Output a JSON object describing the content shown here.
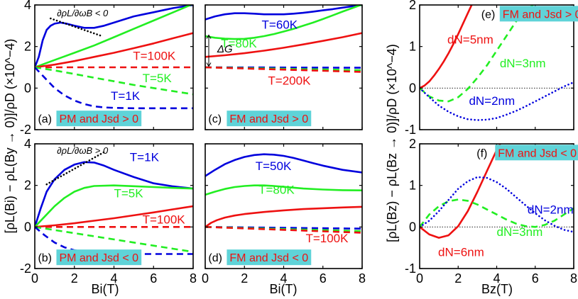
{
  "colors": {
    "blue": "#0000dd",
    "green": "#22ee22",
    "red": "#ee1111",
    "cyan_label_bg": "#5fd3d8",
    "black": "#000000"
  },
  "figure": {
    "left_ylabel": "[ρL(Bi) − ρL(By → 0)]/ρD (×10^−4)",
    "right_ylabel": "[ρL(Bz) − ρL(Bz → 0)]/ρD (×10^−4)",
    "left_xlabel": "Bi(T)",
    "mid_xlabel": "Bi(T)",
    "right_xlabel": "Bz(T)"
  },
  "chart_data": [
    {
      "id": "a",
      "type": "line",
      "panel_label": "(a)",
      "condition": "PM and Jsd > 0",
      "xlim": [
        0,
        8
      ],
      "ylim": [
        -2,
        4
      ],
      "xticks": [
        0,
        2,
        4,
        6,
        8
      ],
      "yticks": [
        "-2",
        "0",
        "2",
        "4"
      ],
      "annotations": [
        "∂ρL/∂ωB < 0"
      ],
      "series": [
        {
          "name": "T=1K",
          "color": "blue",
          "style": "solid",
          "x": [
            0,
            0.2,
            0.4,
            0.6,
            0.8,
            1.0,
            1.3,
            1.6,
            2.0,
            2.5,
            3.0,
            3.5,
            4.0,
            4.5,
            5.0,
            5.5,
            6.0,
            6.5,
            7.0,
            7.5,
            8.0
          ],
          "y": [
            1.0,
            1.5,
            2.3,
            2.8,
            3.0,
            3.1,
            3.15,
            3.1,
            3.0,
            2.9,
            2.9,
            3.0,
            3.15,
            3.3,
            3.45,
            3.55,
            3.65,
            3.75,
            3.85,
            3.93,
            4.0
          ]
        },
        {
          "name": "T=5K",
          "color": "green",
          "style": "solid",
          "x": [
            0,
            1,
            2,
            3,
            4,
            5,
            6,
            7,
            8
          ],
          "y": [
            1.0,
            1.35,
            1.7,
            2.05,
            2.45,
            2.85,
            3.25,
            3.65,
            4.05
          ]
        },
        {
          "name": "T=100K",
          "color": "red",
          "style": "solid",
          "x": [
            0,
            1,
            2,
            3,
            4,
            5,
            6,
            7,
            8
          ],
          "y": [
            1.0,
            1.13,
            1.3,
            1.5,
            1.7,
            1.92,
            2.15,
            2.4,
            2.65
          ]
        },
        {
          "name": "T=100K",
          "color": "red",
          "style": "dashed",
          "x": [
            0,
            8
          ],
          "y": [
            1.0,
            1.0
          ]
        },
        {
          "name": "T=5K",
          "color": "green",
          "style": "dashed",
          "x": [
            0,
            1,
            2,
            3,
            4,
            5,
            6,
            7,
            8
          ],
          "y": [
            1.0,
            0.85,
            0.68,
            0.5,
            0.33,
            0.15,
            0.0,
            -0.15,
            -0.3
          ]
        },
        {
          "name": "T=1K",
          "color": "blue",
          "style": "dashed",
          "x": [
            0,
            0.5,
            1,
            1.5,
            2,
            2.5,
            3,
            3.5,
            4,
            5,
            6,
            7,
            8
          ],
          "y": [
            1.0,
            0.5,
            0.0,
            -0.35,
            -0.6,
            -0.77,
            -0.88,
            -0.93,
            -0.95,
            -0.97,
            -0.97,
            -0.97,
            -0.97
          ]
        }
      ],
      "tangents": [
        {
          "x": [
            0.8,
            3.4
          ],
          "y": [
            3.35,
            2.5
          ]
        }
      ],
      "labels": [
        {
          "text": "T=100K",
          "color": "red"
        },
        {
          "text": "T=5K",
          "color": "green"
        },
        {
          "text": "T=1K",
          "color": "blue"
        }
      ]
    },
    {
      "id": "b",
      "type": "line",
      "panel_label": "(b)",
      "condition": "PM and Jsd < 0",
      "xlim": [
        0,
        8
      ],
      "ylim": [
        -2,
        4
      ],
      "xticks": [
        0,
        2,
        4,
        6,
        8
      ],
      "yticks": [
        "-2",
        "0",
        "2",
        "4"
      ],
      "annotations": [
        "∂ρL/∂ωB > 0"
      ],
      "series": [
        {
          "name": "T=1K",
          "color": "blue",
          "style": "solid",
          "x": [
            0,
            0.3,
            0.6,
            1.0,
            1.5,
            2.0,
            2.5,
            3.0,
            3.5,
            4.0,
            5.0,
            6.0,
            7.0,
            8.0
          ],
          "y": [
            0,
            0.9,
            1.7,
            2.3,
            2.75,
            3.0,
            3.12,
            3.1,
            2.95,
            2.75,
            2.4,
            2.1,
            1.95,
            1.85
          ]
        },
        {
          "name": "T=5K",
          "color": "green",
          "style": "solid",
          "x": [
            0,
            0.5,
            1.0,
            1.5,
            2.0,
            2.5,
            3.0,
            4.0,
            5.0,
            6.0,
            7.0,
            8.0
          ],
          "y": [
            0,
            0.5,
            1.0,
            1.4,
            1.7,
            1.88,
            1.97,
            2.0,
            1.96,
            1.92,
            1.88,
            1.85
          ]
        },
        {
          "name": "T=100K",
          "color": "red",
          "style": "solid",
          "x": [
            0,
            1,
            2,
            3,
            4,
            5,
            6,
            7,
            8
          ],
          "y": [
            0,
            0.08,
            0.18,
            0.3,
            0.42,
            0.56,
            0.7,
            0.85,
            1.0
          ]
        },
        {
          "name": "T=100K",
          "color": "red",
          "style": "dashed",
          "x": [
            0,
            8
          ],
          "y": [
            0,
            0
          ]
        },
        {
          "name": "T=5K",
          "color": "green",
          "style": "dashed",
          "x": [
            0,
            1,
            2,
            3,
            4,
            5,
            6,
            7,
            8
          ],
          "y": [
            0,
            -0.15,
            -0.3,
            -0.45,
            -0.6,
            -0.75,
            -0.9,
            -1.05,
            -1.2
          ]
        },
        {
          "name": "T=1K",
          "color": "blue",
          "style": "dashed",
          "x": [
            0,
            0.5,
            1,
            1.5,
            2,
            3,
            4,
            5,
            6,
            7,
            8
          ],
          "y": [
            0,
            -0.4,
            -0.75,
            -0.98,
            -1.12,
            -1.25,
            -1.28,
            -1.3,
            -1.3,
            -1.3,
            -1.3
          ]
        }
      ],
      "tangents": [
        {
          "x": [
            0.6,
            3.5
          ],
          "y": [
            2.05,
            3.6
          ]
        }
      ],
      "labels": [
        {
          "text": "T=1K",
          "color": "blue"
        },
        {
          "text": "T=5K",
          "color": "green"
        },
        {
          "text": "T=100K",
          "color": "red"
        }
      ]
    },
    {
      "id": "c",
      "type": "line",
      "panel_label": "(c)",
      "condition": "FM and Jsd > 0",
      "xlim": [
        0,
        8
      ],
      "ylim": [
        -2,
        4
      ],
      "xticks": [
        0,
        2,
        4,
        6,
        8
      ],
      "yticks": [],
      "annotations": [
        "ΔG"
      ],
      "series": [
        {
          "name": "T=60K",
          "color": "blue",
          "style": "solid",
          "x": [
            0,
            0.5,
            1,
            1.5,
            2,
            2.5,
            3,
            3.5,
            4,
            4.5,
            5,
            5.5,
            6,
            6.5,
            7,
            7.5,
            8
          ],
          "y": [
            3.3,
            3.45,
            3.55,
            3.6,
            3.6,
            3.58,
            3.55,
            3.55,
            3.55,
            3.58,
            3.62,
            3.68,
            3.74,
            3.8,
            3.87,
            3.94,
            4.0
          ]
        },
        {
          "name": "T=80K",
          "color": "green",
          "style": "solid",
          "x": [
            0,
            0.5,
            1,
            1.5,
            2,
            2.5,
            3,
            3.5,
            4,
            4.5,
            5,
            5.5,
            6,
            6.5,
            7,
            7.5,
            8
          ],
          "y": [
            2.5,
            2.42,
            2.38,
            2.36,
            2.37,
            2.42,
            2.5,
            2.6,
            2.72,
            2.85,
            3.0,
            3.15,
            3.32,
            3.5,
            3.68,
            3.85,
            4.02
          ]
        },
        {
          "name": "T=200K",
          "color": "red",
          "style": "solid",
          "x": [
            0,
            1,
            2,
            3,
            4,
            5,
            6,
            7,
            8
          ],
          "y": [
            1.5,
            1.58,
            1.68,
            1.8,
            1.94,
            2.1,
            2.27,
            2.45,
            2.65
          ]
        },
        {
          "name": "T=60K",
          "color": "blue",
          "style": "dashed",
          "x": [
            0,
            8
          ],
          "y": [
            1.0,
            0.98
          ]
        },
        {
          "name": "T=80K",
          "color": "green",
          "style": "dashed",
          "x": [
            0,
            8
          ],
          "y": [
            1.0,
            0.86
          ]
        },
        {
          "name": "T=200K",
          "color": "red",
          "style": "dashed",
          "x": [
            0,
            8
          ],
          "y": [
            1.0,
            0.78
          ]
        }
      ],
      "labels": [
        {
          "text": "T=60K",
          "color": "blue"
        },
        {
          "text": "T=80K",
          "color": "green"
        },
        {
          "text": "T=200K",
          "color": "red"
        }
      ]
    },
    {
      "id": "d",
      "type": "line",
      "panel_label": "(d)",
      "condition": "FM and Jsd < 0",
      "xlim": [
        0,
        8
      ],
      "ylim": [
        -2,
        4
      ],
      "xticks": [
        0,
        2,
        4,
        6,
        8
      ],
      "yticks": [],
      "annotations": [],
      "series": [
        {
          "name": "T=50K",
          "color": "blue",
          "style": "solid",
          "x": [
            0,
            0.5,
            1,
            1.5,
            2,
            2.5,
            3,
            3.5,
            4,
            4.5,
            5,
            5.5,
            6,
            7,
            8
          ],
          "y": [
            2.45,
            2.75,
            3.02,
            3.22,
            3.37,
            3.46,
            3.5,
            3.48,
            3.42,
            3.32,
            3.2,
            3.07,
            2.95,
            2.75,
            2.62
          ]
        },
        {
          "name": "T=80K",
          "color": "green",
          "style": "solid",
          "x": [
            0,
            0.5,
            1,
            1.5,
            2,
            2.5,
            3,
            3.5,
            4,
            5,
            6,
            7,
            8
          ],
          "y": [
            1.55,
            1.7,
            1.83,
            1.92,
            1.97,
            2.0,
            2.0,
            1.97,
            1.93,
            1.85,
            1.8,
            1.77,
            1.76
          ]
        },
        {
          "name": "T=100K",
          "color": "red",
          "style": "solid",
          "x": [
            0,
            0.3,
            0.6,
            1,
            1.5,
            2,
            3,
            4,
            5,
            6,
            7,
            8
          ],
          "y": [
            0,
            0.2,
            0.33,
            0.45,
            0.55,
            0.62,
            0.72,
            0.8,
            0.86,
            0.9,
            0.94,
            0.97
          ]
        },
        {
          "name": "T=50K",
          "color": "blue",
          "style": "dashed",
          "x": [
            0,
            8
          ],
          "y": [
            0,
            -0.08
          ]
        },
        {
          "name": "T=80K",
          "color": "green",
          "style": "dashed",
          "x": [
            0,
            8
          ],
          "y": [
            0,
            -0.2
          ]
        },
        {
          "name": "T=100K",
          "color": "red",
          "style": "dashed",
          "x": [
            0,
            8
          ],
          "y": [
            0,
            -0.28
          ]
        }
      ],
      "labels": [
        {
          "text": "T=50K",
          "color": "blue"
        },
        {
          "text": "T=80K",
          "color": "green"
        },
        {
          "text": "T=100K",
          "color": "red"
        }
      ]
    },
    {
      "id": "e",
      "type": "line",
      "panel_label": "(e)",
      "condition": "FM and Jsd > 0",
      "xlim": [
        0,
        8
      ],
      "ylim": [
        -1,
        2
      ],
      "xticks": [
        0,
        2,
        4,
        6,
        8
      ],
      "yticks": [
        "-1",
        "0",
        "1",
        "2"
      ],
      "annotations": [],
      "series": [
        {
          "name": "dN=5nm",
          "color": "red",
          "style": "solid",
          "x": [
            0,
            0.25,
            0.5,
            0.75,
            1.0,
            1.25,
            1.5,
            1.75,
            2.0,
            2.25,
            2.5,
            2.75
          ],
          "y": [
            0,
            0.06,
            0.16,
            0.3,
            0.46,
            0.64,
            0.84,
            1.06,
            1.3,
            1.55,
            1.8,
            2.05
          ]
        },
        {
          "name": "dN=3nm",
          "color": "green",
          "style": "dashed",
          "x": [
            0,
            0.5,
            1.0,
            1.5,
            2.0,
            2.5,
            3.0,
            3.5,
            4.0,
            4.5,
            5.0,
            5.5,
            6.0
          ],
          "y": [
            0,
            -0.2,
            -0.3,
            -0.32,
            -0.22,
            -0.02,
            0.25,
            0.55,
            0.9,
            1.25,
            1.6,
            1.85,
            2.05
          ]
        },
        {
          "name": "dN=2nm",
          "color": "blue",
          "style": "dotted",
          "x": [
            0,
            0.5,
            1.0,
            1.5,
            2.0,
            2.5,
            3.0,
            3.5,
            4.0,
            4.5,
            5.0,
            5.5,
            6.0,
            6.5,
            7.0,
            7.5,
            8.0
          ],
          "y": [
            0,
            -0.22,
            -0.42,
            -0.57,
            -0.68,
            -0.75,
            -0.77,
            -0.76,
            -0.72,
            -0.64,
            -0.55,
            -0.44,
            -0.32,
            -0.2,
            -0.08,
            0.04,
            0.14
          ]
        }
      ],
      "labels": [
        {
          "text": "dN=5nm",
          "color": "red"
        },
        {
          "text": "dN=3nm",
          "color": "green"
        },
        {
          "text": "dN=2nm",
          "color": "blue"
        }
      ]
    },
    {
      "id": "f",
      "type": "line",
      "panel_label": "(f)",
      "condition": "FM and Jsd < 0",
      "xlim": [
        0,
        8
      ],
      "ylim": [
        -1,
        2
      ],
      "xticks": [
        0,
        2,
        4,
        6,
        8
      ],
      "yticks": [
        "-1",
        "0",
        "1",
        "2"
      ],
      "annotations": [],
      "series": [
        {
          "name": "dN=6nm",
          "color": "red",
          "style": "solid",
          "x": [
            0,
            0.5,
            1.0,
            1.5,
            2.0,
            2.5,
            3.0,
            3.5,
            4.0,
            4.3
          ],
          "y": [
            0,
            -0.18,
            -0.26,
            -0.2,
            0.02,
            0.38,
            0.85,
            1.35,
            1.85,
            2.1
          ]
        },
        {
          "name": "dN=3nm",
          "color": "green",
          "style": "dashed",
          "x": [
            0,
            0.5,
            1.0,
            1.5,
            2.0,
            2.5,
            3.0,
            3.5,
            4.0,
            4.5,
            5.0,
            5.5,
            6.0,
            6.5,
            7.0,
            7.5,
            8.0
          ],
          "y": [
            0,
            0.3,
            0.5,
            0.62,
            0.66,
            0.63,
            0.54,
            0.42,
            0.3,
            0.18,
            0.08,
            0.02,
            0.0,
            0.05,
            0.15,
            0.3,
            0.45
          ]
        },
        {
          "name": "dN=2nm",
          "color": "blue",
          "style": "dotted",
          "x": [
            0,
            0.5,
            1.0,
            1.5,
            2.0,
            2.5,
            3.0,
            3.5,
            4.0,
            4.5,
            5.0,
            5.5,
            6.0,
            6.5,
            7.0,
            7.5,
            8.0
          ],
          "y": [
            0,
            0.15,
            0.38,
            0.65,
            0.92,
            1.1,
            1.2,
            1.18,
            1.08,
            0.92,
            0.72,
            0.52,
            0.33,
            0.16,
            0.03,
            -0.07,
            -0.12
          ]
        }
      ],
      "labels": [
        {
          "text": "dN=6nm",
          "color": "red"
        },
        {
          "text": "dN=2nm",
          "color": "blue"
        },
        {
          "text": "dN=3nm",
          "color": "green"
        }
      ]
    }
  ]
}
